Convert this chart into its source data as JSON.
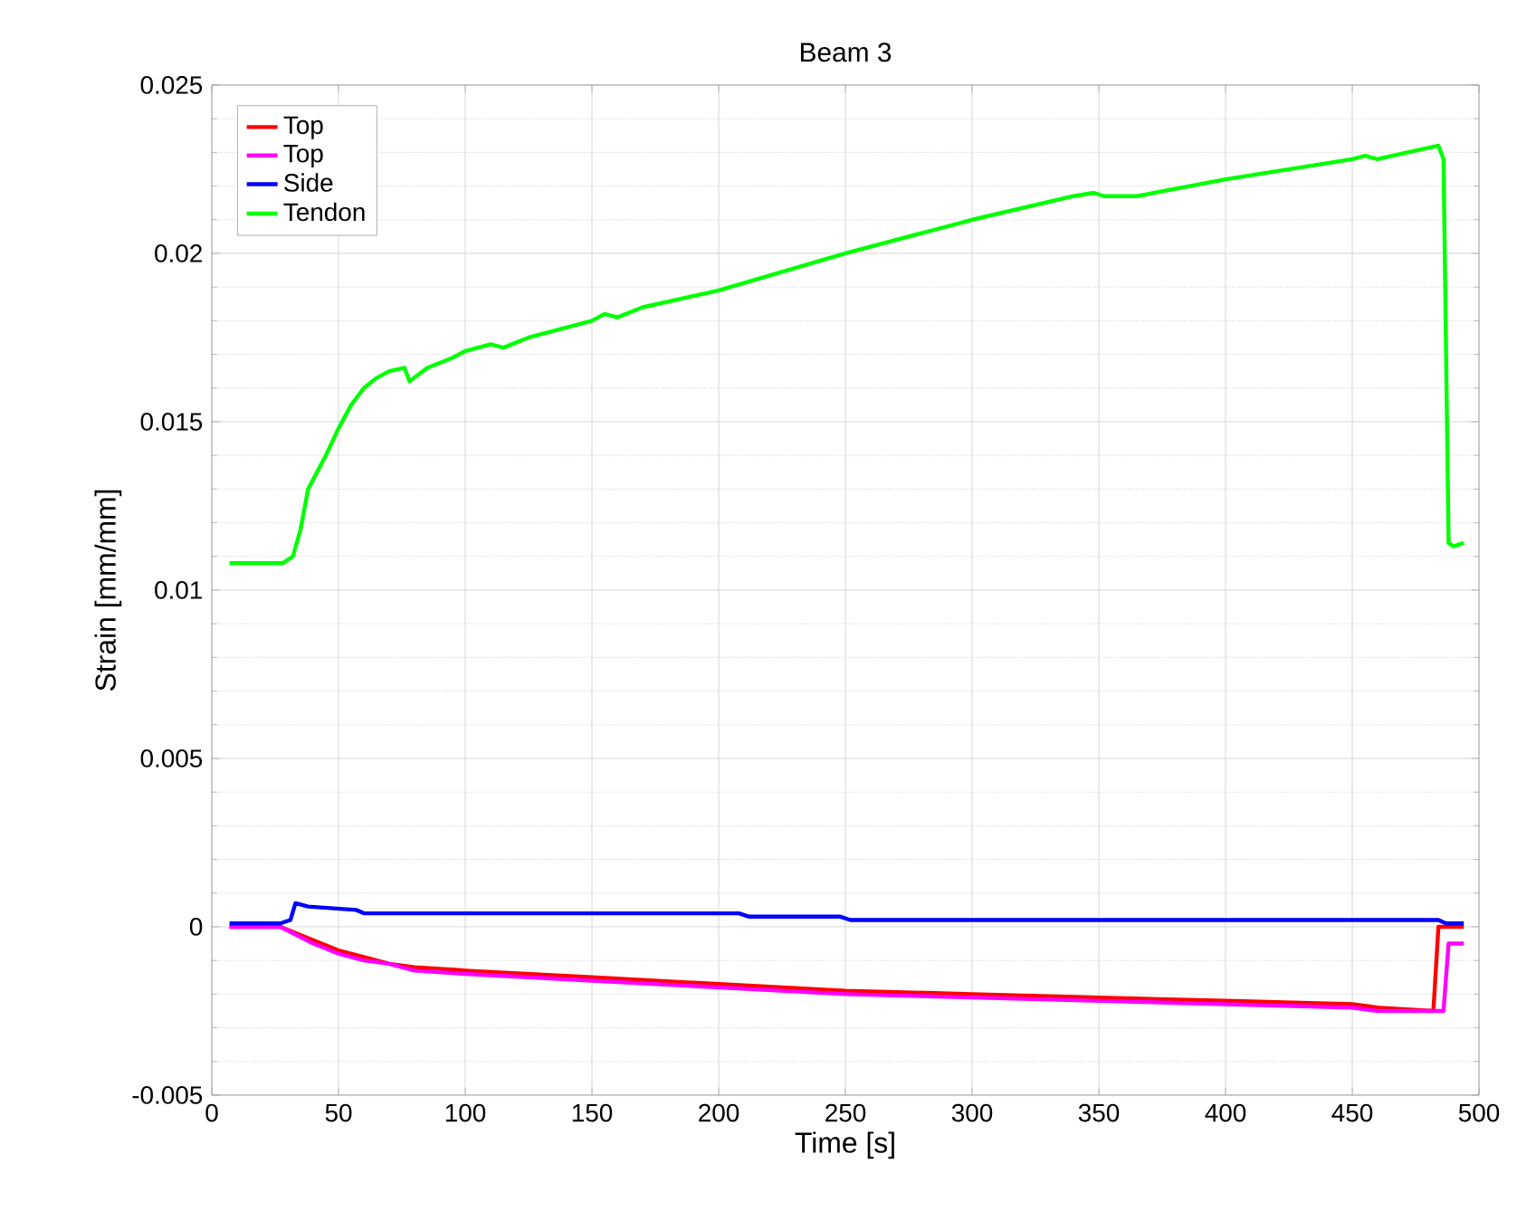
{
  "chart_data": {
    "type": "line",
    "title": "Beam 3",
    "xlabel": "Time [s]",
    "ylabel": "Strain [mm/mm]",
    "xlim": [
      0,
      500
    ],
    "ylim": [
      -0.005,
      0.025
    ],
    "xticks": [
      0,
      50,
      100,
      150,
      200,
      250,
      300,
      350,
      400,
      450,
      500
    ],
    "yticks": [
      -0.005,
      0,
      0.005,
      0.01,
      0.015,
      0.02,
      0.025
    ],
    "grid": true,
    "legend": "top left",
    "marker": "none",
    "line_style": "solid",
    "series": [
      {
        "name": "Top",
        "color": "#ff0000",
        "x": [
          7,
          27,
          40,
          50,
          60,
          70,
          80,
          100,
          150,
          200,
          250,
          300,
          350,
          400,
          450,
          460,
          482,
          484,
          494
        ],
        "values": [
          0,
          0,
          -0.0004,
          -0.0007,
          -0.0009,
          -0.0011,
          -0.0012,
          -0.0013,
          -0.0015,
          -0.0017,
          -0.0019,
          -0.002,
          -0.0021,
          -0.0022,
          -0.0023,
          -0.0024,
          -0.0025,
          0,
          0
        ]
      },
      {
        "name": "Top",
        "color": "#ff00ff",
        "x": [
          7,
          27,
          40,
          50,
          60,
          70,
          80,
          100,
          150,
          200,
          250,
          300,
          350,
          400,
          450,
          460,
          486,
          488,
          494
        ],
        "values": [
          0,
          0,
          -0.0005,
          -0.0008,
          -0.001,
          -0.0011,
          -0.0013,
          -0.0014,
          -0.0016,
          -0.0018,
          -0.002,
          -0.0021,
          -0.0022,
          -0.0023,
          -0.0024,
          -0.0025,
          -0.0025,
          -0.0005,
          -0.0005
        ]
      },
      {
        "name": "Side",
        "color": "#0000ff",
        "x": [
          7,
          27,
          31,
          33,
          38,
          57,
          60,
          208,
          212,
          248,
          252,
          484,
          487,
          494
        ],
        "values": [
          0.0001,
          0.0001,
          0.0002,
          0.0007,
          0.0006,
          0.0005,
          0.0004,
          0.0004,
          0.0003,
          0.0003,
          0.0002,
          0.0002,
          0.0001,
          0.0001
        ]
      },
      {
        "name": "Tendon",
        "color": "#00ff00",
        "x": [
          7,
          28,
          32,
          35,
          38,
          45,
          50,
          55,
          60,
          65,
          70,
          76,
          78,
          85,
          95,
          100,
          110,
          115,
          125,
          150,
          155,
          160,
          170,
          200,
          250,
          300,
          340,
          348,
          352,
          365,
          400,
          450,
          455,
          460,
          484,
          486,
          488,
          490,
          494
        ],
        "values": [
          0.0108,
          0.0108,
          0.011,
          0.0118,
          0.013,
          0.014,
          0.0148,
          0.0155,
          0.016,
          0.0163,
          0.0165,
          0.0166,
          0.0162,
          0.0166,
          0.0169,
          0.0171,
          0.0173,
          0.0172,
          0.0175,
          0.018,
          0.0182,
          0.0181,
          0.0184,
          0.0189,
          0.02,
          0.021,
          0.0217,
          0.0218,
          0.0217,
          0.0217,
          0.0222,
          0.0228,
          0.0229,
          0.0228,
          0.0232,
          0.0228,
          0.0114,
          0.0113,
          0.0114
        ]
      }
    ]
  }
}
